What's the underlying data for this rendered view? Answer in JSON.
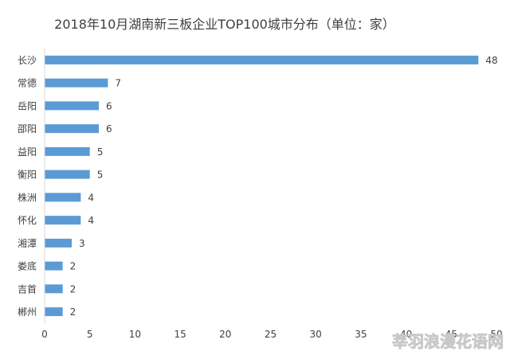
{
  "chart_data": {
    "type": "bar",
    "orientation": "horizontal",
    "title": "2018年10月湖南新三板企业TOP100城市分布（单位：家）",
    "categories": [
      "长沙",
      "常德",
      "岳阳",
      "邵阳",
      "益阳",
      "衡阳",
      "株洲",
      "怀化",
      "湘潭",
      "娄底",
      "吉首",
      "郴州"
    ],
    "values": [
      48,
      7,
      6,
      6,
      5,
      5,
      4,
      4,
      3,
      2,
      2,
      2
    ],
    "xlim": [
      0,
      50
    ],
    "xticks": [
      0,
      5,
      10,
      15,
      20,
      25,
      30,
      35,
      40,
      45,
      50
    ],
    "bar_color": "#5b9bd5",
    "axis_color": "#d9d9d9",
    "data_labels": true,
    "grid": false,
    "legend": "none"
  },
  "watermark": "莘羽浪漫花语网"
}
